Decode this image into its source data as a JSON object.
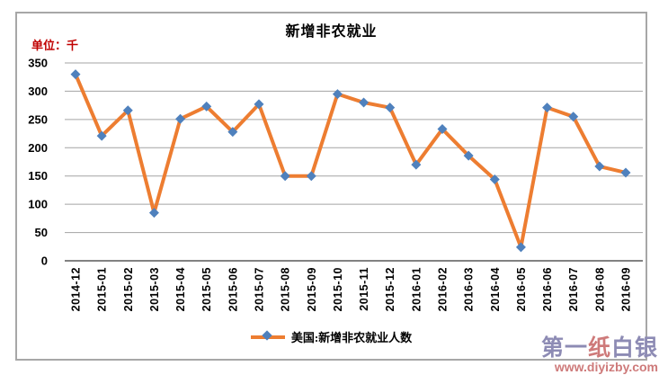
{
  "chart_data": {
    "type": "line",
    "title": "新增非农就业",
    "unit_label": "单位：千",
    "categories": [
      "2014-12",
      "2015-01",
      "2015-02",
      "2015-03",
      "2015-04",
      "2015-05",
      "2015-06",
      "2015-07",
      "2015-08",
      "2015-09",
      "2015-10",
      "2015-11",
      "2015-12",
      "2016-01",
      "2016-02",
      "2016-03",
      "2016-04",
      "2016-05",
      "2016-06",
      "2016-07",
      "2016-08",
      "2016-09"
    ],
    "series": [
      {
        "name": "美国:新增非农就业人数",
        "values": [
          330,
          221,
          266,
          85,
          251,
          273,
          228,
          277,
          150,
          150,
          295,
          280,
          271,
          170,
          233,
          186,
          144,
          24,
          271,
          255,
          167,
          156
        ]
      }
    ],
    "ylim": [
      0,
      350
    ],
    "yticks": [
      350,
      300,
      250,
      200,
      150,
      100,
      50,
      0
    ],
    "grid": true,
    "legend_position": "bottom",
    "marker_shape": "diamond",
    "colors": {
      "line": "#ED7D31",
      "marker": "#4F81BD",
      "unit_label": "#C00000",
      "gridline": "#A3A3A3",
      "axis": "#595959"
    }
  },
  "watermark": {
    "parts": [
      {
        "text": "第一",
        "color": "#8D8BB4"
      },
      {
        "text": "纸",
        "color": "#CE7A7A"
      },
      {
        "text": "白银",
        "color": "#8D8BB4"
      }
    ],
    "url": "www.diyizby.com",
    "url_color": "#CE7A7A"
  }
}
